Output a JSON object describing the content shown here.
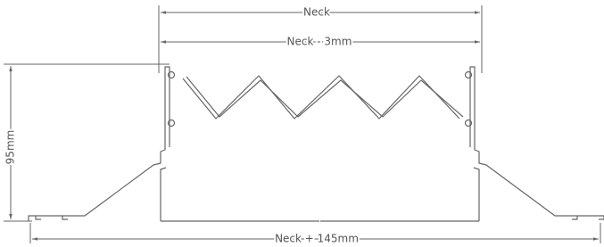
{
  "dimensions": {
    "top": "Neck",
    "inner": "Neck - 3mm",
    "height": "95mm",
    "bottom": "Neck + 145mm"
  }
}
